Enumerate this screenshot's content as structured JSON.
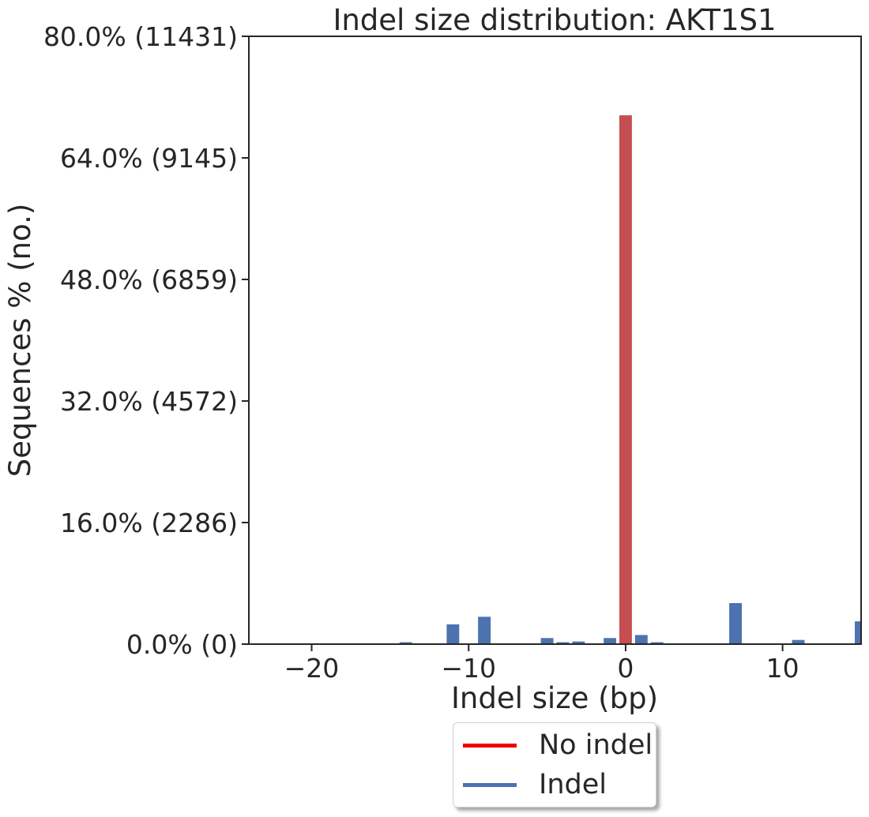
{
  "chart_data": {
    "type": "bar",
    "title": "Indel size distribution: AKT1S1",
    "xlabel": "Indel size (bp)",
    "ylabel": "Sequences % (no.)",
    "xlim": [
      -24,
      15
    ],
    "ylim": [
      0,
      80
    ],
    "x_ticks": [
      -20,
      -10,
      0,
      10
    ],
    "x_tick_labels": [
      "−20",
      "−10",
      "0",
      "10"
    ],
    "y_ticks": [
      0,
      16,
      32,
      48,
      64,
      80
    ],
    "y_tick_labels": [
      "0.0% (0)",
      "16.0% (2286)",
      "32.0% (4572)",
      "48.0% (6859)",
      "64.0% (9145)",
      "80.0% (11431)"
    ],
    "series": [
      {
        "name": "No indel",
        "color": "#c44e52",
        "x": [
          0
        ],
        "values": [
          69.6
        ]
      },
      {
        "name": "Indel",
        "color": "#4c72b0",
        "x": [
          -14,
          -11,
          -9,
          -5,
          -4,
          -3,
          -1,
          1,
          2,
          7,
          11,
          15
        ],
        "values": [
          0.25,
          2.6,
          3.6,
          0.8,
          0.25,
          0.35,
          0.8,
          1.2,
          0.25,
          5.4,
          0.55,
          3.0
        ]
      }
    ],
    "legend": {
      "position": "bottom-center",
      "entries": [
        {
          "label": "No indel",
          "color": "#ee0000"
        },
        {
          "label": "Indel",
          "color": "#4c72b0"
        }
      ]
    }
  }
}
